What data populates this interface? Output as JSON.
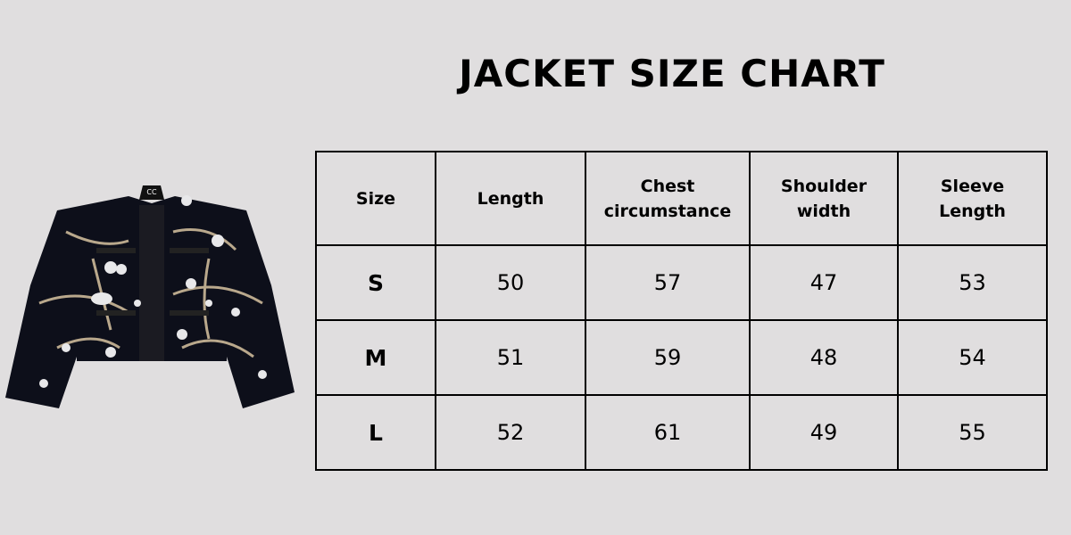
{
  "title": "JACKET SIZE CHART",
  "product_image": {
    "alt": "black embroidered jacket with birds and flowers",
    "logo_text": "CC"
  },
  "table": {
    "headers": [
      [
        "Size"
      ],
      [
        "Length"
      ],
      [
        "Chest",
        "circumstance"
      ],
      [
        "Shoulder",
        "width"
      ],
      [
        "Sleeve",
        "Length"
      ]
    ],
    "rows": [
      [
        "S",
        "50",
        "57",
        "47",
        "53"
      ],
      [
        "M",
        "51",
        "59",
        "48",
        "54"
      ],
      [
        "L",
        "52",
        "61",
        "49",
        "55"
      ]
    ]
  },
  "colors": {
    "background": "#e0dedf",
    "border": "#000000",
    "text": "#000000"
  }
}
